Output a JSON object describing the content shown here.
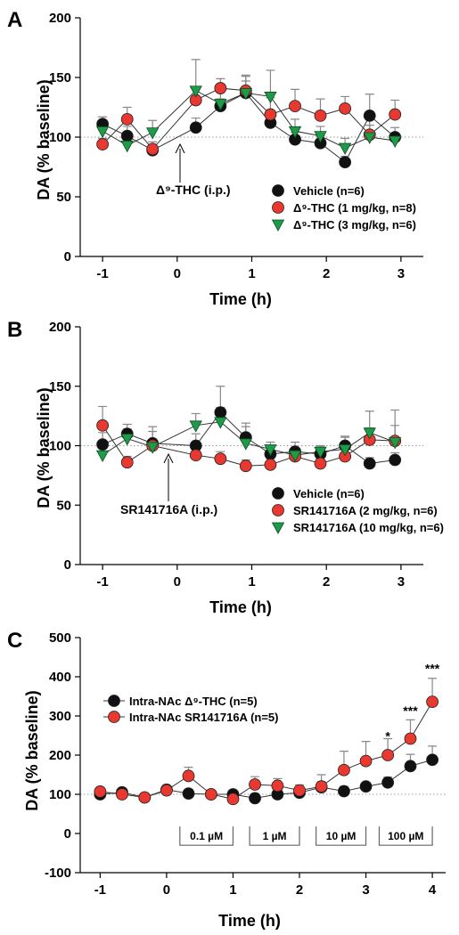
{
  "chart_data": [
    {
      "type": "line",
      "panel": "A",
      "xlabel": "Time (h)",
      "ylabel": "DA (% baseline)",
      "xlim": [
        -1.3,
        3.3
      ],
      "ylim": [
        0,
        200
      ],
      "xticks": [
        -1,
        0,
        1,
        2,
        3
      ],
      "yticks": [
        0,
        50,
        100,
        150,
        200
      ],
      "baseline": 100,
      "annotation": {
        "text": "Δ⁹-THC (i.p.)",
        "x": 0.1
      },
      "series": [
        {
          "name": "Vehicle (n=6)",
          "color": "#111111",
          "marker": "circle",
          "x": [
            -1,
            -0.67,
            -0.33,
            0.25,
            0.58,
            0.92,
            1.25,
            1.58,
            1.92,
            2.25,
            2.58,
            2.92
          ],
          "values": [
            111,
            101,
            89,
            108,
            126,
            137,
            112,
            98,
            95,
            79,
            118,
            100
          ],
          "err": [
            6,
            8,
            5,
            8,
            6,
            10,
            8,
            6,
            6,
            5,
            18,
            8
          ]
        },
        {
          "name": "Δ⁹-THC (1 mg/kg, n=8)",
          "color": "#e8382f",
          "marker": "circle",
          "x": [
            -1,
            -0.67,
            -0.33,
            0.25,
            0.58,
            0.92,
            1.25,
            1.58,
            1.92,
            2.25,
            2.58,
            2.92
          ],
          "values": [
            94,
            115,
            90,
            131,
            141,
            139,
            119,
            126,
            118,
            124,
            102,
            119
          ],
          "err": [
            5,
            10,
            6,
            10,
            8,
            12,
            14,
            14,
            14,
            10,
            15,
            12
          ]
        },
        {
          "name": "Δ⁹-THC (3 mg/kg, n=6)",
          "color": "#1e9b49",
          "marker": "triangle",
          "x": [
            -1,
            -0.67,
            -0.33,
            0.25,
            0.58,
            0.92,
            1.25,
            1.58,
            1.92,
            2.25,
            2.58,
            2.92
          ],
          "values": [
            105,
            93,
            104,
            139,
            128,
            137,
            134,
            105,
            101,
            91,
            100,
            97
          ],
          "err": [
            6,
            5,
            10,
            26,
            14,
            15,
            22,
            10,
            8,
            8,
            10,
            6
          ]
        }
      ]
    },
    {
      "type": "line",
      "panel": "B",
      "xlabel": "Time (h)",
      "ylabel": "DA (% baseline)",
      "xlim": [
        -1.3,
        3.3
      ],
      "ylim": [
        0,
        200
      ],
      "xticks": [
        -1,
        0,
        1,
        2,
        3
      ],
      "yticks": [
        0,
        50,
        100,
        150,
        200
      ],
      "baseline": 100,
      "annotation": {
        "text": "SR141716A (i.p.)",
        "x": 0
      },
      "series": [
        {
          "name": "Vehicle (n=6)",
          "color": "#111111",
          "marker": "circle",
          "x": [
            -1,
            -0.67,
            -0.33,
            0.25,
            0.58,
            0.92,
            1.25,
            1.58,
            1.92,
            2.25,
            2.58,
            2.92
          ],
          "values": [
            101,
            110,
            102,
            100,
            128,
            107,
            93,
            95,
            93,
            100,
            85,
            88
          ],
          "err": [
            10,
            8,
            14,
            10,
            22,
            12,
            6,
            8,
            6,
            8,
            5,
            6
          ]
        },
        {
          "name": "SR141716A (2 mg/kg, n=6)",
          "color": "#e8382f",
          "marker": "circle",
          "x": [
            -1,
            -0.67,
            -0.33,
            0.25,
            0.58,
            0.92,
            1.25,
            1.58,
            1.92,
            2.25,
            2.58,
            2.92
          ],
          "values": [
            117,
            86,
            100,
            92,
            89,
            83,
            84,
            91,
            85,
            91,
            105,
            104
          ],
          "err": [
            16,
            5,
            12,
            6,
            6,
            5,
            5,
            6,
            6,
            6,
            10,
            26
          ]
        },
        {
          "name": "SR141716A (10 mg/kg, n=6)",
          "color": "#1e9b49",
          "marker": "triangle",
          "x": [
            -1,
            -0.67,
            -0.33,
            0.25,
            0.58,
            0.92,
            1.25,
            1.58,
            1.92,
            2.25,
            2.58,
            2.92
          ],
          "values": [
            92,
            106,
            99,
            117,
            120,
            102,
            97,
            92,
            95,
            97,
            111,
            103
          ],
          "err": [
            6,
            8,
            6,
            10,
            12,
            14,
            6,
            5,
            5,
            10,
            18,
            14
          ]
        }
      ]
    },
    {
      "type": "line",
      "panel": "C",
      "xlabel": "Time (h)",
      "ylabel": "DA (% baseline)",
      "xlim": [
        -1.3,
        4.2
      ],
      "ylim": [
        -100,
        500
      ],
      "xticks": [
        -1,
        0,
        1,
        2,
        3,
        4
      ],
      "yticks": [
        -100,
        0,
        100,
        200,
        300,
        400,
        500
      ],
      "baseline": 100,
      "concentrations": [
        {
          "label": "0.1 µM",
          "from": 0.2,
          "to": 1.0
        },
        {
          "label": "1 µM",
          "from": 1.25,
          "to": 2.0
        },
        {
          "label": "10 µM",
          "from": 2.25,
          "to": 3.0
        },
        {
          "label": "100 µM",
          "from": 3.2,
          "to": 4.0
        }
      ],
      "significance": [
        {
          "text": "*",
          "x": 3.33,
          "y": 238
        },
        {
          "text": "***",
          "x": 3.67,
          "y": 302
        },
        {
          "text": "***",
          "x": 4.0,
          "y": 410
        }
      ],
      "series": [
        {
          "name": "Intra-NAc Δ⁹-THC (n=5)",
          "color": "#111111",
          "marker": "circle",
          "x": [
            -1,
            -0.67,
            -0.33,
            0,
            0.33,
            0.67,
            1.0,
            1.33,
            1.67,
            2.0,
            2.33,
            2.67,
            3.0,
            3.33,
            3.67,
            4.0
          ],
          "values": [
            100,
            105,
            92,
            112,
            102,
            100,
            100,
            90,
            100,
            104,
            118,
            108,
            120,
            130,
            172,
            188
          ],
          "err": [
            8,
            8,
            8,
            8,
            10,
            10,
            8,
            12,
            10,
            12,
            14,
            12,
            10,
            14,
            30,
            35
          ]
        },
        {
          "name": "Intra-NAc SR141716A (n=5)",
          "color": "#e8382f",
          "marker": "circle",
          "x": [
            -1,
            -0.67,
            -0.33,
            0,
            0.33,
            0.67,
            1.0,
            1.33,
            1.67,
            2.0,
            2.33,
            2.67,
            3.0,
            3.33,
            3.67,
            4.0
          ],
          "values": [
            107,
            100,
            92,
            110,
            147,
            100,
            88,
            125,
            122,
            110,
            120,
            162,
            185,
            200,
            242,
            336
          ],
          "err": [
            8,
            8,
            8,
            10,
            22,
            10,
            8,
            20,
            18,
            14,
            30,
            48,
            50,
            42,
            48,
            60
          ]
        }
      ]
    }
  ]
}
